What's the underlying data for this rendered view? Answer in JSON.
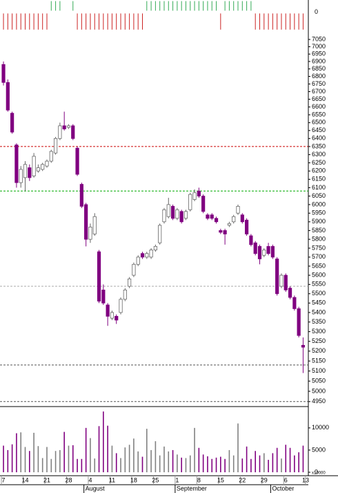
{
  "chart_data": {
    "type": "candlestick",
    "log_scale": true,
    "x": [
      0,
      1,
      2,
      3,
      4,
      5,
      6,
      7,
      8,
      9,
      10,
      11,
      12,
      13,
      14,
      15,
      16,
      17,
      18,
      19,
      20,
      21,
      22,
      23,
      24,
      25,
      26,
      27,
      28,
      29,
      30,
      31,
      32,
      33,
      34,
      35,
      36,
      37,
      38,
      39,
      40,
      41,
      42,
      43,
      44,
      45,
      46,
      47,
      48,
      49,
      50,
      51,
      52,
      53,
      54,
      55,
      56,
      57,
      58,
      59,
      60,
      61,
      62,
      63,
      64,
      65,
      66,
      67,
      68,
      69
    ],
    "open": [
      6880,
      6760,
      6560,
      6360,
      6130,
      6160,
      6220,
      6170,
      6200,
      6210,
      6230,
      6260,
      6310,
      6400,
      6480,
      6470,
      6480,
      6340,
      6120,
      6000,
      5800,
      5830,
      5730,
      5520,
      5440,
      5370,
      5380,
      5400,
      5470,
      5540,
      5600,
      5660,
      5720,
      5700,
      5700,
      5740,
      5780,
      5900,
      5930,
      5990,
      5920,
      5960,
      5920,
      5970,
      6030,
      6080,
      6050,
      5940,
      5940,
      5920,
      5850,
      5850,
      5880,
      5900,
      5950,
      5940,
      5910,
      5820,
      5780,
      5760,
      5710,
      5760,
      5760,
      5690,
      5540,
      5600,
      5530,
      5480,
      5420,
      5230
    ],
    "high": [
      6900,
      6780,
      6570,
      6370,
      6230,
      6260,
      6240,
      6310,
      6240,
      6250,
      6270,
      6330,
      6410,
      6500,
      6570,
      6490,
      6490,
      6350,
      6130,
      6010,
      5890,
      5950,
      5740,
      5550,
      5450,
      5410,
      5390,
      5480,
      5530,
      5590,
      5670,
      5710,
      5730,
      5730,
      5750,
      5770,
      5890,
      5980,
      6040,
      6000,
      5980,
      5970,
      5970,
      6070,
      6090,
      6100,
      6060,
      5950,
      5950,
      5930,
      5860,
      5860,
      5900,
      5940,
      6000,
      5950,
      5920,
      5830,
      5790,
      5770,
      5750,
      5780,
      5770,
      5700,
      5610,
      5610,
      5540,
      5490,
      5430,
      5270
    ],
    "low": [
      6740,
      6570,
      6430,
      6100,
      6100,
      6080,
      6140,
      6160,
      6190,
      6200,
      6220,
      6250,
      6300,
      6390,
      6450,
      6460,
      6390,
      6170,
      5980,
      5760,
      5780,
      5820,
      5450,
      5440,
      5330,
      5360,
      5340,
      5390,
      5460,
      5530,
      5590,
      5650,
      5690,
      5690,
      5690,
      5730,
      5770,
      5890,
      5920,
      5910,
      5910,
      5890,
      5910,
      5960,
      6020,
      6040,
      5950,
      5910,
      5910,
      5890,
      5830,
      5770,
      5870,
      5890,
      5940,
      5890,
      5820,
      5760,
      5710,
      5660,
      5700,
      5710,
      5690,
      5490,
      5530,
      5510,
      5470,
      5410,
      5270,
      5090
    ],
    "close": [
      6760,
      6580,
      6440,
      6130,
      6210,
      6240,
      6160,
      6290,
      6220,
      6240,
      6260,
      6320,
      6400,
      6480,
      6460,
      6480,
      6400,
      6180,
      5990,
      5800,
      5870,
      5930,
      5460,
      5450,
      5380,
      5400,
      5360,
      5470,
      5520,
      5580,
      5660,
      5700,
      5700,
      5720,
      5740,
      5760,
      5880,
      5970,
      6000,
      5920,
      5970,
      5900,
      5960,
      6060,
      6070,
      6050,
      5960,
      5920,
      5920,
      5900,
      5840,
      5830,
      5890,
      5930,
      5990,
      5900,
      5830,
      5770,
      5720,
      5690,
      5740,
      5720,
      5700,
      5500,
      5600,
      5520,
      5480,
      5420,
      5280,
      5220
    ],
    "up_color": "#ffffff",
    "down_color": "#800080",
    "ylim": [
      4926,
      7098
    ],
    "yticks": [
      7050,
      7000,
      6950,
      6900,
      6850,
      6800,
      6750,
      6700,
      6650,
      6600,
      6550,
      6500,
      6450,
      6400,
      6350,
      6300,
      6250,
      6200,
      6150,
      6100,
      6050,
      6000,
      5950,
      5900,
      5850,
      5800,
      5750,
      5700,
      5650,
      5600,
      5550,
      5500,
      5450,
      5400,
      5350,
      5300,
      5250,
      5200,
      5150,
      5100,
      5050,
      5000,
      4950
    ],
    "xlim": [
      -0.8,
      70.2
    ],
    "xticks": [
      {
        "value": 0,
        "label": "7"
      },
      {
        "value": 5,
        "label": "14"
      },
      {
        "value": 10,
        "label": "21"
      },
      {
        "value": 15,
        "label": "28"
      },
      {
        "value": 20,
        "label": "4"
      },
      {
        "value": 25,
        "label": "11"
      },
      {
        "value": 30,
        "label": "18"
      },
      {
        "value": 35,
        "label": "25"
      },
      {
        "value": 40,
        "label": "1"
      },
      {
        "value": 45,
        "label": "8"
      },
      {
        "value": 50,
        "label": "15"
      },
      {
        "value": 55,
        "label": "22"
      },
      {
        "value": 60,
        "label": "29"
      },
      {
        "value": 65,
        "label": "6"
      },
      {
        "value": 70,
        "label": "13"
      }
    ],
    "month_ticks": [
      {
        "value": 19,
        "label": "August"
      },
      {
        "value": 40,
        "label": "September"
      },
      {
        "value": 62,
        "label": "October"
      }
    ],
    "hlines": [
      {
        "value": 6350,
        "color": "#cc0000"
      },
      {
        "value": 6080,
        "color": "#00aa00"
      },
      {
        "value": 5540,
        "color": "#aaaaaa"
      },
      {
        "value": 5130,
        "color": "#555555"
      },
      {
        "value": 4950,
        "color": "#555555"
      }
    ],
    "volume": {
      "values": [
        6000,
        5000,
        6300,
        8800,
        9000,
        5700,
        4800,
        8900,
        5900,
        3200,
        5700,
        3000,
        4800,
        5000,
        9100,
        6000,
        6100,
        3000,
        3000,
        10000,
        7700,
        3100,
        10400,
        13700,
        10500,
        6000,
        4300,
        3200,
        5600,
        6200,
        7600,
        4700,
        3500,
        9800,
        5000,
        7000,
        3800,
        5800,
        4700,
        5000,
        4000,
        3300,
        3200,
        3800,
        10000,
        5500,
        4000,
        3600,
        3000,
        3300,
        3500,
        3000,
        5000,
        3800,
        11000,
        3100,
        5800,
        3000,
        4800,
        3800,
        4300,
        2800,
        4300,
        5500,
        3100,
        6200,
        5500,
        3800,
        4500,
        6000
      ],
      "up_color": "#808080",
      "down_color": "#800080",
      "ylim": [
        0,
        14500
      ],
      "yticks": [
        0,
        5000,
        10000
      ],
      "unit_label": "x10000"
    },
    "signals": {
      "values": [
        -1,
        -1,
        -1,
        -1,
        -1,
        -1,
        -1,
        -1,
        -1,
        -1,
        -1,
        1,
        1,
        1,
        0,
        0,
        1,
        -1,
        -1,
        -1,
        -1,
        -1,
        -1,
        -1,
        -1,
        -1,
        -1,
        -1,
        -1,
        -1,
        -1,
        -1,
        -1,
        1,
        1,
        1,
        1,
        1,
        1,
        1,
        1,
        1,
        1,
        1,
        1,
        1,
        1,
        1,
        1,
        1,
        -1,
        1,
        1,
        1,
        1,
        1,
        1,
        1,
        -1,
        -1,
        -1,
        -1,
        -1,
        -1,
        -1,
        -1,
        -1,
        -1,
        -1,
        -1
      ],
      "up_color": "#33aa55",
      "down_color": "#cc2222",
      "magnitude_up": 1,
      "magnitude_down": 1.6,
      "ylim": [
        -1.8,
        1.1
      ],
      "yticks": [
        0
      ]
    }
  }
}
